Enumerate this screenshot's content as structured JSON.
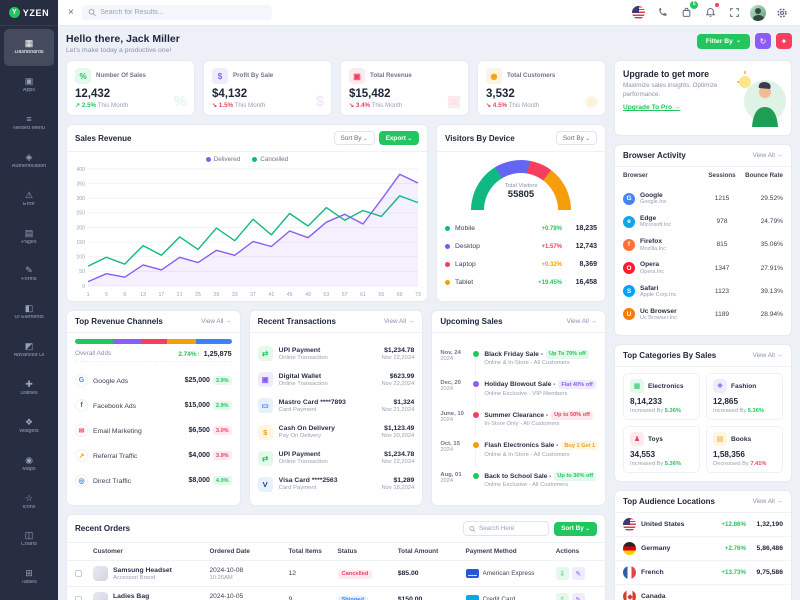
{
  "app": {
    "name": "YZEN",
    "logo_letter": "Y"
  },
  "header": {
    "search_placeholder": "Search for Results...",
    "cart_badge": "5",
    "icons": [
      "flag-icon",
      "phone-icon",
      "cart-icon",
      "bell-icon",
      "fullscreen-icon",
      "avatar",
      "settings-icon"
    ]
  },
  "sidebar": {
    "items": [
      {
        "label": "Dashboards",
        "icon": "dashboard-icon",
        "glyph": "▦",
        "active": true
      },
      {
        "label": "Apps",
        "icon": "apps-icon",
        "glyph": "▣",
        "active": false
      },
      {
        "label": "Nested Menu",
        "icon": "nested-menu-icon",
        "glyph": "≡",
        "active": false
      },
      {
        "label": "Authentication",
        "icon": "lock-icon",
        "glyph": "◈",
        "active": false
      },
      {
        "label": "Error",
        "icon": "error-icon",
        "glyph": "⚠",
        "active": false
      },
      {
        "label": "Pages",
        "icon": "pages-icon",
        "glyph": "▤",
        "active": false
      },
      {
        "label": "Forms",
        "icon": "forms-icon",
        "glyph": "✎",
        "active": false
      },
      {
        "label": "UI Elements",
        "icon": "ui-elements-icon",
        "glyph": "◧",
        "active": false
      },
      {
        "label": "Advanced UI",
        "icon": "advanced-ui-icon",
        "glyph": "◩",
        "active": false
      },
      {
        "label": "Utilities",
        "icon": "utilities-icon",
        "glyph": "✚",
        "active": false
      },
      {
        "label": "Widgets",
        "icon": "widgets-icon",
        "glyph": "❖",
        "active": false
      },
      {
        "label": "Maps",
        "icon": "maps-icon",
        "glyph": "◉",
        "active": false
      },
      {
        "label": "Icons",
        "icon": "icons-icon",
        "glyph": "☆",
        "active": false
      },
      {
        "label": "Charts",
        "icon": "charts-icon",
        "glyph": "◫",
        "active": false
      },
      {
        "label": "Tables",
        "icon": "tables-icon",
        "glyph": "⊞",
        "active": false
      }
    ]
  },
  "welcome": {
    "title": "Hello there, Jack Miller",
    "subtitle": "Let's make today a productive one!",
    "filter_label": "Filter By"
  },
  "stats": [
    {
      "label": "Number Of Sales",
      "value": "12,432",
      "change": "↗ 2.5%",
      "change_color": "#22c55e",
      "period": "This Month",
      "color": "#22c55e",
      "tint": "#e4f8ec",
      "glyph": "%"
    },
    {
      "label": "Profit By Sale",
      "value": "$4,132",
      "change": "↘ 1.5%",
      "change_color": "#f43f5e",
      "period": "This Month",
      "color": "#8b5cf6",
      "tint": "#efecfe",
      "glyph": "$"
    },
    {
      "label": "Total Revenue",
      "value": "$15,482",
      "change": "↘ 3.4%",
      "change_color": "#f43f5e",
      "period": "This Month",
      "color": "#f43f5e",
      "tint": "#fde9ee",
      "glyph": "▣"
    },
    {
      "label": "Total Customers",
      "value": "3,532",
      "change": "↘ 4.5%",
      "change_color": "#f43f5e",
      "period": "This Month",
      "color": "#f59e0b",
      "tint": "#fef3e2",
      "glyph": "◉"
    }
  ],
  "upgrade": {
    "title": "Upgrade to get more",
    "text": "Maximize sales insights. Optimize performance.",
    "link": "Upgrade To Pro"
  },
  "sales_revenue": {
    "title": "Sales Revenue",
    "sort_label": "Sort By",
    "export_label": "Export"
  },
  "chart_data": {
    "type": "line",
    "title": "Sales Revenue",
    "x_ticks": [
      1,
      5,
      9,
      13,
      17,
      21,
      25,
      29,
      33,
      37,
      41,
      45,
      49,
      53,
      57,
      61,
      65,
      69,
      73
    ],
    "y_ticks": [
      0,
      50,
      100,
      150,
      200,
      250,
      300,
      350,
      400
    ],
    "ylim": [
      0,
      400
    ],
    "grid": true,
    "legend_position": "top",
    "series": [
      {
        "name": "Delivered",
        "color": "#8b5cf6",
        "fill": true,
        "values": [
          15,
          42,
          30,
          72,
          55,
          98,
          80,
          122,
          105,
          152,
          135,
          188,
          165,
          218,
          245,
          212,
          295,
          382,
          352
        ]
      },
      {
        "name": "Cancelled",
        "color": "#10b981",
        "fill": false,
        "values": [
          68,
          98,
          75,
          138,
          105,
          168,
          125,
          198,
          155,
          228,
          175,
          248,
          205,
          268,
          225,
          258,
          238,
          308,
          285
        ]
      }
    ]
  },
  "visitors": {
    "title": "Visitors By Device",
    "sort_label": "Sort By",
    "total_label": "Total Visitors",
    "total": "55805",
    "devices": [
      {
        "name": "Mobile",
        "change": "+0.78%",
        "change_color": "#22c55e",
        "value": "18,235",
        "num": 18235,
        "color": "#10b981"
      },
      {
        "name": "Desktop",
        "change": "+1.57%",
        "change_color": "#f43f5e",
        "value": "12,743",
        "num": 12743,
        "color": "#6366f1"
      },
      {
        "name": "Laptop",
        "change": "+0.32%",
        "change_color": "#f59e0b",
        "value": "8,369",
        "num": 8369,
        "color": "#f43f5e"
      },
      {
        "name": "Tablet",
        "change": "+19.45%",
        "change_color": "#22c55e",
        "value": "16,458",
        "num": 16458,
        "color": "#f59e0b"
      }
    ]
  },
  "browser_activity": {
    "title": "Browser Activity",
    "view_all": "View All",
    "columns": [
      "Browser",
      "Sessions",
      "Bounce Rate"
    ],
    "rows": [
      {
        "name": "Google",
        "company": "Google.Inc",
        "sessions": "1215",
        "bounce": "29.52%",
        "color": "#4285F4",
        "initial": "G"
      },
      {
        "name": "Edge",
        "company": "Microsoft.Inc",
        "sessions": "978",
        "bounce": "24.79%",
        "color": "#0ea5e9",
        "initial": "e"
      },
      {
        "name": "Firefox",
        "company": "Mozilla.Inc",
        "sessions": "815",
        "bounce": "35.06%",
        "color": "#ff7139",
        "initial": "f"
      },
      {
        "name": "Opera",
        "company": "Opera.Inc",
        "sessions": "1347",
        "bounce": "27.91%",
        "color": "#ff1b2d",
        "initial": "O"
      },
      {
        "name": "Safari",
        "company": "Apple Corp.Inc",
        "sessions": "1123",
        "bounce": "39.13%",
        "color": "#00a2ff",
        "initial": "S"
      },
      {
        "name": "Uc Browser",
        "company": "Uc Browser.Inc",
        "sessions": "1189",
        "bounce": "28.94%",
        "color": "#ff7a00",
        "initial": "U"
      }
    ]
  },
  "revenue_channels": {
    "title": "Top Revenue Channels",
    "view_all": "View All",
    "overall_label": "Overall Adds",
    "overall_change": "2.74%↑",
    "overall_value": "1,25,875",
    "segments": [
      {
        "color": "#22c55e",
        "width": "24%"
      },
      {
        "color": "#8b5cf6",
        "width": "19%"
      },
      {
        "color": "#f43f5e",
        "width": "16%"
      },
      {
        "color": "#f59e0b",
        "width": "18%"
      },
      {
        "color": "#3b82f6",
        "width": "23%"
      }
    ],
    "channels": [
      {
        "name": "Google Ads",
        "value": "$25,000",
        "badge": "3.9%",
        "badge_bg": "#e4f8ec",
        "badge_color": "#22c55e",
        "icon_color": "#4285F4",
        "initial": "G",
        "bar": "85%",
        "bar_color": "#22c55e"
      },
      {
        "name": "Facebook Ads",
        "value": "$15,000",
        "badge": "2.9%",
        "badge_bg": "#e4f8ec",
        "badge_color": "#22c55e",
        "icon_color": "#1877F2",
        "initial": "f",
        "bar": "62%",
        "bar_color": "#8b5cf6"
      },
      {
        "name": "Email Marketing",
        "value": "$6,500",
        "badge": "3.0%",
        "badge_bg": "#fde9ee",
        "badge_color": "#f43f5e",
        "icon_color": "#f43f5e",
        "initial": "✉",
        "bar": "38%",
        "bar_color": "#f43f5e"
      },
      {
        "name": "Referral Traffic",
        "value": "$4,000",
        "badge": "3.9%",
        "badge_bg": "#fde9ee",
        "badge_color": "#f43f5e",
        "icon_color": "#f59e0b",
        "initial": "↗",
        "bar": "28%",
        "bar_color": "#f59e0b"
      },
      {
        "name": "Direct Traffic",
        "value": "$8,000",
        "badge": "4.0%",
        "badge_bg": "#e4f8ec",
        "badge_color": "#22c55e",
        "icon_color": "#3b82f6",
        "initial": "◎",
        "bar": "46%",
        "bar_color": "#3b82f6"
      }
    ]
  },
  "transactions": {
    "title": "Recent Transactions",
    "view_all": "View All",
    "rows": [
      {
        "name": "UPI Payment",
        "type": "Online Transaction",
        "amount": "$1,234.78",
        "date": "Nov 22,2024",
        "icon_bg": "#e4f8ec",
        "icon_color": "#22c55e",
        "glyph": "⇄"
      },
      {
        "name": "Digital Wallet",
        "type": "Online Transaction",
        "amount": "$623.99",
        "date": "Nov 22,2024",
        "icon_bg": "#efecfe",
        "icon_color": "#8b5cf6",
        "glyph": "▣"
      },
      {
        "name": "Mastro Card ****7893",
        "type": "Card Payment",
        "amount": "$1,324",
        "date": "Nov 21,2024",
        "icon_bg": "#e7f0fe",
        "icon_color": "#3b82f6",
        "glyph": "▭"
      },
      {
        "name": "Cash On Delivery",
        "type": "Pay On Delivery",
        "amount": "$1,123.49",
        "date": "Nov 20,2024",
        "icon_bg": "#fef6e0",
        "icon_color": "#f59e0b",
        "glyph": "$"
      },
      {
        "name": "UPI Payment",
        "type": "Online Transaction",
        "amount": "$1,234.78",
        "date": "Nov 22,2024",
        "icon_bg": "#e4f8ec",
        "icon_color": "#22c55e",
        "glyph": "⇄"
      },
      {
        "name": "Visa Card ****2563",
        "type": "Card Payment",
        "amount": "$1,289",
        "date": "Nov 18,2024",
        "icon_bg": "#e7f0fe",
        "icon_color": "#1a3c8f",
        "glyph": "V"
      }
    ]
  },
  "upcoming_sales": {
    "title": "Upcoming Sales",
    "view_all": "View All",
    "rows": [
      {
        "date": "Nov, 24",
        "year": "2024",
        "name": "Black Friday Sale -",
        "badge": "Up To 70% off",
        "badge_bg": "#e4f8ec",
        "badge_color": "#22c55e",
        "desc": "Online & In-Store - All Customers",
        "dot": "#22c55e"
      },
      {
        "date": "Dec, 20",
        "year": "2024",
        "name": "Holiday Blowout Sale -",
        "badge": "Flat 40% off",
        "badge_bg": "#efecfe",
        "badge_color": "#8b5cf6",
        "desc": "Online Exclusive - VIP Members",
        "dot": "#8b5cf6"
      },
      {
        "date": "June, 10",
        "year": "2024",
        "name": "Summer Clearance -",
        "badge": "Up to 50% off",
        "badge_bg": "#fde9ee",
        "badge_color": "#f43f5e",
        "desc": "In-Store Only - All Customers",
        "dot": "#f43f5e"
      },
      {
        "date": "Oct, 15",
        "year": "2024",
        "name": "Flash Electronics Sale -",
        "badge": "Buy 1 Get 1 Free",
        "badge_bg": "#fef6e0",
        "badge_color": "#f59e0b",
        "desc": "Online & In-Store - All Customers",
        "dot": "#f59e0b"
      },
      {
        "date": "Aug, 01",
        "year": "2024",
        "name": "Back to School Sale -",
        "badge": "Up to 30% off",
        "badge_bg": "#e4f8ec",
        "badge_color": "#22c55e",
        "desc": "Online Exclusive - All Customers",
        "dot": "#22c55e"
      }
    ]
  },
  "categories": {
    "title": "Top Categories By Sales",
    "view_all": "View All",
    "items": [
      {
        "name": "Electronics",
        "value": "8,14,233",
        "trend_label": "Increased By",
        "trend": "5.36%",
        "trend_color": "#22c55e",
        "icon_bg": "#e4f8ec",
        "icon_color": "#22c55e",
        "glyph": "▦"
      },
      {
        "name": "Fashion",
        "value": "12,865",
        "trend_label": "Increased By",
        "trend": "5.36%",
        "trend_color": "#22c55e",
        "icon_bg": "#efecfe",
        "icon_color": "#8b5cf6",
        "glyph": "❖"
      },
      {
        "name": "Toys",
        "value": "34,553",
        "trend_label": "Increased By",
        "trend": "5.36%",
        "trend_color": "#22c55e",
        "icon_bg": "#fde9ee",
        "icon_color": "#f43f5e",
        "glyph": "♟"
      },
      {
        "name": "Books",
        "value": "1,58,356",
        "trend_label": "Decreased By",
        "trend": "7.41%",
        "trend_color": "#f43f5e",
        "icon_bg": "#fef6e0",
        "icon_color": "#f59e0b",
        "glyph": "▤"
      }
    ]
  },
  "orders": {
    "title": "Recent Orders",
    "search_placeholder": "Search Here",
    "sort_label": "Sort By",
    "columns": [
      "Customer",
      "Ordered Date",
      "Total Items",
      "Status",
      "Total Amount",
      "Payment Method",
      "Actions"
    ],
    "rows": [
      {
        "customer": "Samsung Headset",
        "brand": "Accessori Brand",
        "date": "2024-10-08",
        "time": "10:26AM",
        "items": "12",
        "status": "Cancelled",
        "status_bg": "#fde9ee",
        "status_color": "#f43f5e",
        "amount": "$85.00",
        "payment": "American Express",
        "pay_color": "#2557d6"
      },
      {
        "customer": "Ladies Bag",
        "brand": "Velbrin Brand",
        "date": "2024-10-05",
        "time": "12:45PM",
        "items": "9",
        "status": "Shipped",
        "status_bg": "#e7f0fe",
        "status_color": "#3b82f6",
        "amount": "$150.00",
        "payment": "Credit Card",
        "pay_color": "#0ea5e9"
      }
    ]
  },
  "locations": {
    "title": "Top Audience Locations",
    "view_all": "View All",
    "rows": [
      {
        "name": "United States",
        "flag": "us",
        "change": "+12.86%",
        "change_color": "#22c55e",
        "value": "1,32,190"
      },
      {
        "name": "Germany",
        "flag": "de",
        "change": "+2.76%",
        "change_color": "#22c55e",
        "value": "5,86,486"
      },
      {
        "name": "French",
        "flag": "fr",
        "change": "+13.73%",
        "change_color": "#22c55e",
        "value": "9,75,586"
      },
      {
        "name": "Canada",
        "flag": "ca",
        "change": "",
        "value": ""
      }
    ]
  }
}
